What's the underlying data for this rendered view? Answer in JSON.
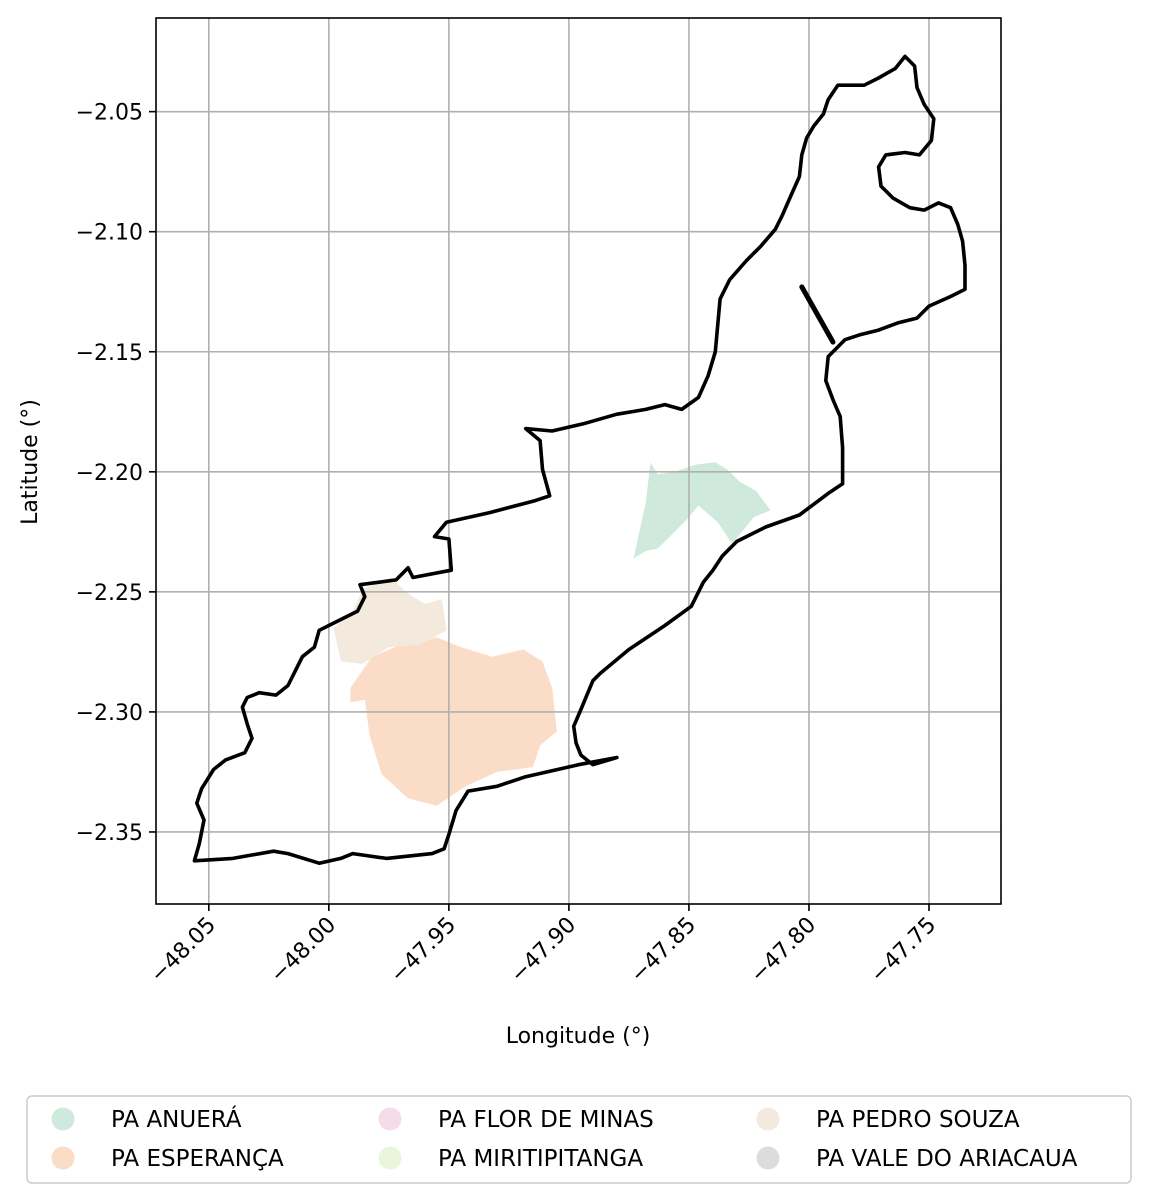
{
  "chart_data": {
    "type": "map",
    "xlabel": "Longitude (°)",
    "ylabel": "Latitude (°)",
    "xlim": [
      -48.072,
      -47.72
    ],
    "ylim": [
      -2.38,
      -2.011
    ],
    "grid": true,
    "legend_placement": "below",
    "x_ticks": [
      {
        "value": -48.05,
        "label": "−48.05"
      },
      {
        "value": -48.0,
        "label": "−48.00"
      },
      {
        "value": -47.95,
        "label": "−47.95"
      },
      {
        "value": -47.9,
        "label": "−47.90"
      },
      {
        "value": -47.85,
        "label": "−47.85"
      },
      {
        "value": -47.8,
        "label": "−47.80"
      },
      {
        "value": -47.75,
        "label": "−47.75"
      }
    ],
    "y_ticks": [
      {
        "value": -2.05,
        "label": "−2.05"
      },
      {
        "value": -2.1,
        "label": "−2.10"
      },
      {
        "value": -2.15,
        "label": "−2.15"
      },
      {
        "value": -2.2,
        "label": "−2.20"
      },
      {
        "value": -2.25,
        "label": "−2.25"
      },
      {
        "value": -2.3,
        "label": "−2.30"
      },
      {
        "value": -2.35,
        "label": "−2.35"
      }
    ],
    "legend": [
      {
        "label": "PA ANUERÁ",
        "color": "#cfe9dc"
      },
      {
        "label": "PA ESPERANÇA",
        "color": "#fbdcc6"
      },
      {
        "label": "PA FLOR DE MINAS",
        "color": "#f6dbe9"
      },
      {
        "label": "PA MIRITIPITANGA",
        "color": "#eaf6d9"
      },
      {
        "label": "PA PEDRO SOUZA",
        "color": "#f3e9dc"
      },
      {
        "label": "PA VALE DO ARIACAUA",
        "color": "#dcdcdc"
      }
    ],
    "areas": [
      {
        "name": "PA ANUERÁ",
        "color": "#cfe9dc",
        "coords": [
          [
            -47.873,
            -2.236
          ],
          [
            -47.87,
            -2.222
          ],
          [
            -47.868,
            -2.213
          ],
          [
            -47.866,
            -2.196
          ],
          [
            -47.863,
            -2.201
          ],
          [
            -47.856,
            -2.2
          ],
          [
            -47.847,
            -2.197
          ],
          [
            -47.839,
            -2.196
          ],
          [
            -47.834,
            -2.199
          ],
          [
            -47.829,
            -2.204
          ],
          [
            -47.822,
            -2.208
          ],
          [
            -47.816,
            -2.216
          ],
          [
            -47.823,
            -2.219
          ],
          [
            -47.832,
            -2.23
          ],
          [
            -47.838,
            -2.221
          ],
          [
            -47.846,
            -2.214
          ],
          [
            -47.851,
            -2.22
          ],
          [
            -47.857,
            -2.226
          ],
          [
            -47.863,
            -2.232
          ],
          [
            -47.868,
            -2.233
          ]
        ]
      },
      {
        "name": "PA ESPERANÇA",
        "color": "#fbdcc6",
        "coords": [
          [
            -47.982,
            -2.277
          ],
          [
            -47.97,
            -2.272
          ],
          [
            -47.955,
            -2.269
          ],
          [
            -47.945,
            -2.273
          ],
          [
            -47.932,
            -2.277
          ],
          [
            -47.919,
            -2.274
          ],
          [
            -47.911,
            -2.279
          ],
          [
            -47.907,
            -2.29
          ],
          [
            -47.905,
            -2.308
          ],
          [
            -47.912,
            -2.314
          ],
          [
            -47.915,
            -2.323
          ],
          [
            -47.93,
            -2.325
          ],
          [
            -47.943,
            -2.331
          ],
          [
            -47.955,
            -2.339
          ],
          [
            -47.967,
            -2.336
          ],
          [
            -47.978,
            -2.326
          ],
          [
            -47.983,
            -2.31
          ],
          [
            -47.985,
            -2.295
          ],
          [
            -47.991,
            -2.296
          ],
          [
            -47.991,
            -2.29
          ]
        ]
      },
      {
        "name": "PA PEDRO SOUZA",
        "color": "#f3e9dc",
        "coords": [
          [
            -47.986,
            -2.249
          ],
          [
            -47.974,
            -2.244
          ],
          [
            -47.968,
            -2.25
          ],
          [
            -47.96,
            -2.255
          ],
          [
            -47.953,
            -2.253
          ],
          [
            -47.951,
            -2.266
          ],
          [
            -47.962,
            -2.272
          ],
          [
            -47.975,
            -2.273
          ],
          [
            -47.986,
            -2.28
          ],
          [
            -47.995,
            -2.279
          ],
          [
            -47.998,
            -2.265
          ],
          [
            -47.99,
            -2.258
          ]
        ]
      }
    ],
    "boundary": [
      [
        -47.76,
        -2.027
      ],
      [
        -47.756,
        -2.031
      ],
      [
        -47.755,
        -2.04
      ],
      [
        -47.752,
        -2.047
      ],
      [
        -47.748,
        -2.053
      ],
      [
        -47.749,
        -2.062
      ],
      [
        -47.754,
        -2.068
      ],
      [
        -47.76,
        -2.067
      ],
      [
        -47.768,
        -2.068
      ],
      [
        -47.771,
        -2.073
      ],
      [
        -47.77,
        -2.081
      ],
      [
        -47.765,
        -2.086
      ],
      [
        -47.758,
        -2.09
      ],
      [
        -47.752,
        -2.091
      ],
      [
        -47.746,
        -2.088
      ],
      [
        -47.741,
        -2.09
      ],
      [
        -47.738,
        -2.097
      ],
      [
        -47.736,
        -2.104
      ],
      [
        -47.735,
        -2.114
      ],
      [
        -47.735,
        -2.124
      ],
      [
        -47.741,
        -2.127
      ],
      [
        -47.75,
        -2.131
      ],
      [
        -47.755,
        -2.136
      ],
      [
        -47.763,
        -2.138
      ],
      [
        -47.771,
        -2.141
      ],
      [
        -47.779,
        -2.143
      ],
      [
        -47.785,
        -2.145
      ],
      [
        -47.792,
        -2.152
      ],
      [
        -47.793,
        -2.162
      ],
      [
        -47.79,
        -2.17
      ],
      [
        -47.787,
        -2.177
      ],
      [
        -47.786,
        -2.19
      ],
      [
        -47.786,
        -2.205
      ],
      [
        -47.792,
        -2.209
      ],
      [
        -47.804,
        -2.218
      ],
      [
        -47.818,
        -2.223
      ],
      [
        -47.83,
        -2.229
      ],
      [
        -47.836,
        -2.235
      ],
      [
        -47.84,
        -2.241
      ],
      [
        -47.844,
        -2.246
      ],
      [
        -47.849,
        -2.256
      ],
      [
        -47.86,
        -2.264
      ],
      [
        -47.875,
        -2.274
      ],
      [
        -47.887,
        -2.284
      ],
      [
        -47.89,
        -2.287
      ],
      [
        -47.895,
        -2.299
      ],
      [
        -47.898,
        -2.306
      ],
      [
        -47.897,
        -2.313
      ],
      [
        -47.895,
        -2.318
      ],
      [
        -47.89,
        -2.322
      ],
      [
        -47.88,
        -2.319
      ],
      [
        -47.896,
        -2.322
      ],
      [
        -47.918,
        -2.327
      ],
      [
        -47.93,
        -2.331
      ],
      [
        -47.942,
        -2.333
      ],
      [
        -47.947,
        -2.341
      ],
      [
        -47.95,
        -2.351
      ],
      [
        -47.952,
        -2.357
      ],
      [
        -47.957,
        -2.359
      ],
      [
        -47.976,
        -2.361
      ],
      [
        -47.99,
        -2.359
      ],
      [
        -47.995,
        -2.361
      ],
      [
        -48.004,
        -2.363
      ],
      [
        -48.017,
        -2.359
      ],
      [
        -48.023,
        -2.358
      ],
      [
        -48.04,
        -2.361
      ],
      [
        -48.056,
        -2.362
      ],
      [
        -48.054,
        -2.355
      ],
      [
        -48.052,
        -2.345
      ],
      [
        -48.055,
        -2.338
      ],
      [
        -48.053,
        -2.332
      ],
      [
        -48.048,
        -2.324
      ],
      [
        -48.043,
        -2.32
      ],
      [
        -48.035,
        -2.317
      ],
      [
        -48.032,
        -2.311
      ],
      [
        -48.034,
        -2.305
      ],
      [
        -48.036,
        -2.298
      ],
      [
        -48.034,
        -2.294
      ],
      [
        -48.029,
        -2.292
      ],
      [
        -48.022,
        -2.293
      ],
      [
        -48.017,
        -2.289
      ],
      [
        -48.014,
        -2.283
      ],
      [
        -48.011,
        -2.277
      ],
      [
        -48.006,
        -2.273
      ],
      [
        -48.004,
        -2.266
      ],
      [
        -47.998,
        -2.263
      ],
      [
        -47.988,
        -2.258
      ],
      [
        -47.985,
        -2.252
      ],
      [
        -47.987,
        -2.247
      ],
      [
        -47.972,
        -2.245
      ],
      [
        -47.967,
        -2.24
      ],
      [
        -47.965,
        -2.244
      ],
      [
        -47.949,
        -2.241
      ],
      [
        -47.95,
        -2.228
      ],
      [
        -47.956,
        -2.227
      ],
      [
        -47.951,
        -2.221
      ],
      [
        -47.933,
        -2.217
      ],
      [
        -47.914,
        -2.212
      ],
      [
        -47.908,
        -2.21
      ],
      [
        -47.911,
        -2.199
      ],
      [
        -47.912,
        -2.187
      ],
      [
        -47.918,
        -2.182
      ],
      [
        -47.907,
        -2.183
      ],
      [
        -47.894,
        -2.18
      ],
      [
        -47.88,
        -2.176
      ],
      [
        -47.868,
        -2.174
      ],
      [
        -47.86,
        -2.172
      ],
      [
        -47.853,
        -2.174
      ],
      [
        -47.846,
        -2.169
      ],
      [
        -47.842,
        -2.16
      ],
      [
        -47.839,
        -2.15
      ],
      [
        -47.838,
        -2.139
      ],
      [
        -47.837,
        -2.128
      ],
      [
        -47.833,
        -2.12
      ],
      [
        -47.826,
        -2.112
      ],
      [
        -47.82,
        -2.106
      ],
      [
        -47.814,
        -2.099
      ],
      [
        -47.811,
        -2.093
      ],
      [
        -47.808,
        -2.086
      ],
      [
        -47.804,
        -2.077
      ],
      [
        -47.803,
        -2.068
      ],
      [
        -47.801,
        -2.061
      ],
      [
        -47.798,
        -2.056
      ],
      [
        -47.794,
        -2.051
      ],
      [
        -47.792,
        -2.045
      ],
      [
        -47.788,
        -2.039
      ],
      [
        -47.777,
        -2.039
      ],
      [
        -47.771,
        -2.036
      ],
      [
        -47.764,
        -2.032
      ]
    ],
    "spur": [
      [
        -47.803,
        -2.123
      ],
      [
        -47.79,
        -2.146
      ]
    ]
  }
}
